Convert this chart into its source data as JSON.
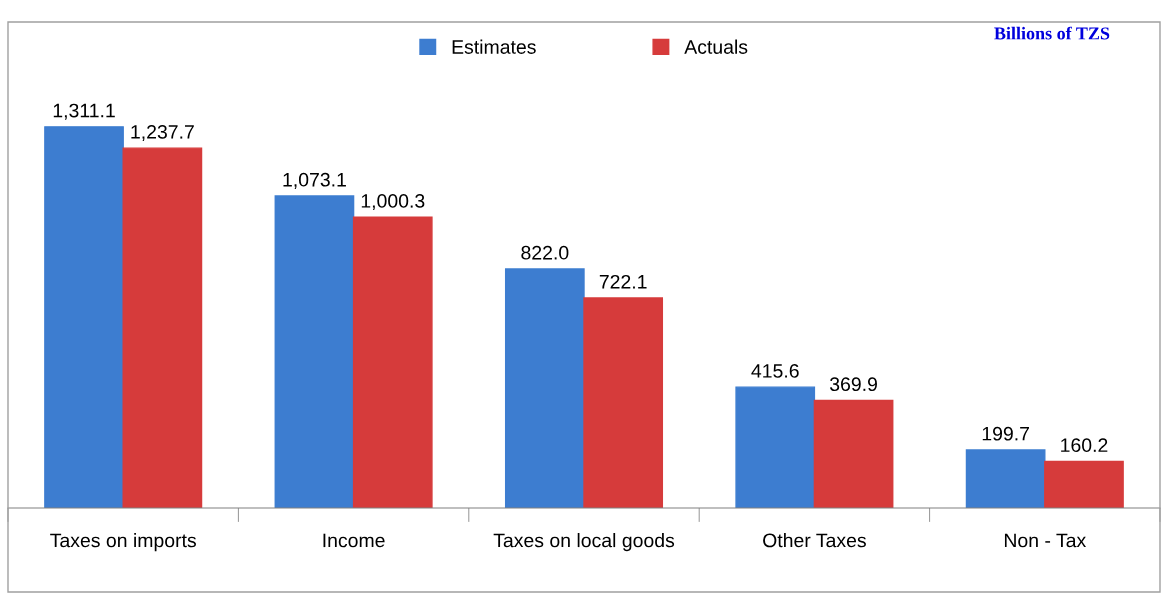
{
  "chart_data": {
    "type": "bar",
    "annotations": [
      "Billions of TZS"
    ],
    "categories": [
      "Taxes on imports",
      "Income",
      "Taxes on local goods",
      "Other Taxes",
      "Non - Tax"
    ],
    "series": [
      {
        "name": "Estimates",
        "color": "#3d7dd0",
        "values": [
          1311.1,
          1073.1,
          822.0,
          415.6,
          199.7
        ],
        "value_labels": [
          "1,311.1",
          "1,073.1",
          "822.0",
          "415.6",
          "199.7"
        ]
      },
      {
        "name": "Actuals",
        "color": "#d63b3b",
        "values": [
          1237.7,
          1000.3,
          722.1,
          369.9,
          160.2
        ],
        "value_labels": [
          "1,237.7",
          "1,000.3",
          "722.1",
          "369.9",
          "160.2"
        ]
      }
    ],
    "legend": "top",
    "grid": false,
    "tick_labels": "x"
  }
}
